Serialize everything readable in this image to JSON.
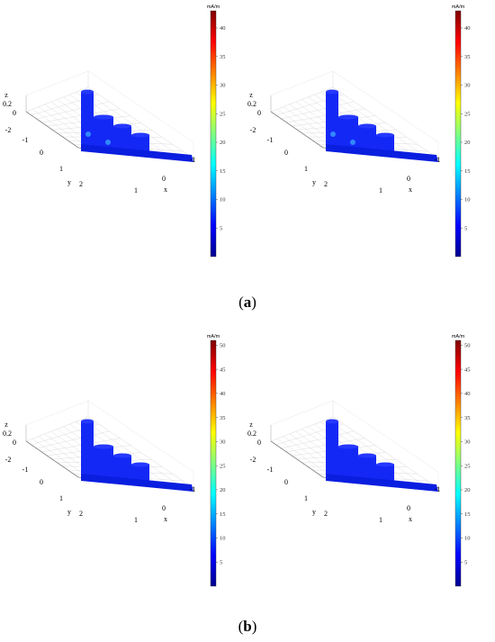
{
  "colormap": {
    "stops": [
      "#00008f",
      "#0000ff",
      "#0080ff",
      "#00ffff",
      "#80ff80",
      "#ffff00",
      "#ff8000",
      "#ff0000",
      "#800000"
    ]
  },
  "groups": [
    {
      "caption_label": "a",
      "colorbar": {
        "unit": "mA/m",
        "ticks": [
          "40",
          "35",
          "30",
          "25",
          "20",
          "15",
          "10",
          "5"
        ],
        "max": 43
      },
      "axes": {
        "z_ticks": [
          "0.2",
          "0"
        ],
        "y_ticks": [
          "-2",
          "-1",
          "0",
          "1",
          "2"
        ],
        "x_ticks": [
          "-1",
          "0",
          "1"
        ],
        "z_label": "z",
        "y_label": "y",
        "x_label": "x"
      }
    },
    {
      "caption_label": "b",
      "colorbar": {
        "unit": "mA/m",
        "ticks": [
          "50",
          "45",
          "40",
          "35",
          "30",
          "25",
          "20",
          "15",
          "10",
          "5"
        ],
        "max": 51
      },
      "axes": {
        "z_ticks": [
          "0.2",
          "0"
        ],
        "y_ticks": [
          "-2",
          "-1",
          "0",
          "1",
          "2"
        ],
        "x_ticks": [
          "-1",
          "0",
          "1"
        ],
        "z_label": "z",
        "y_label": "y",
        "x_label": "x"
      }
    }
  ]
}
